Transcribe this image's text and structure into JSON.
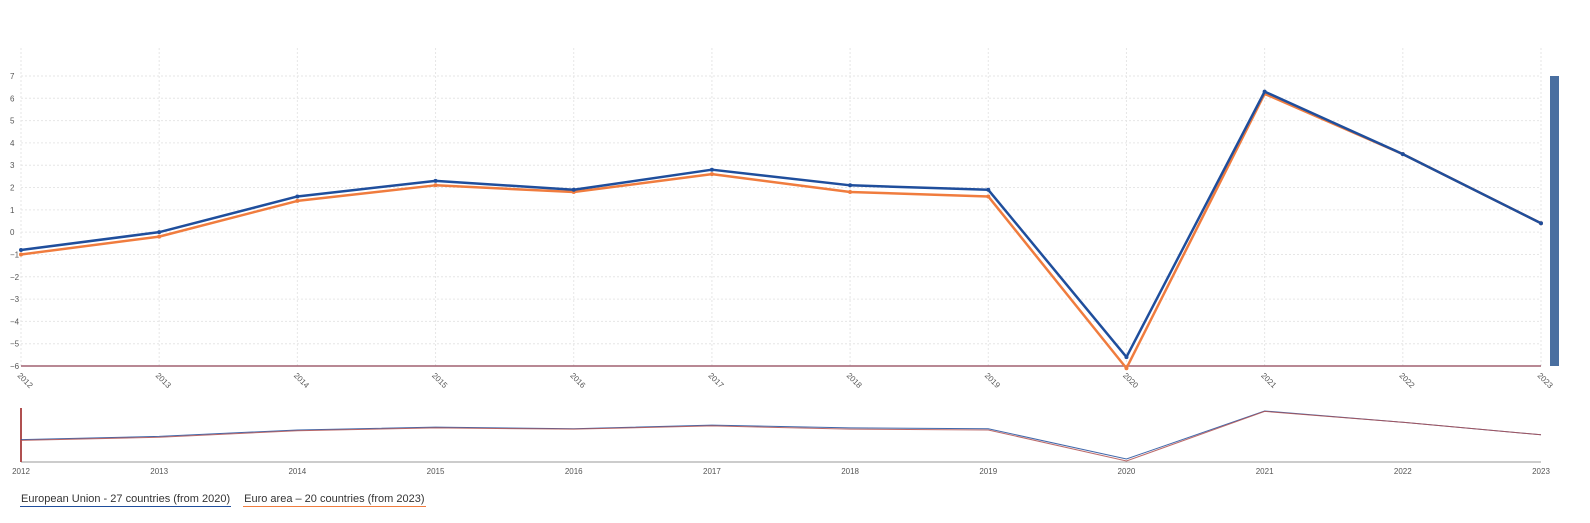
{
  "chart_data": {
    "type": "line",
    "x": [
      2012,
      2013,
      2014,
      2015,
      2016,
      2017,
      2018,
      2019,
      2020,
      2021,
      2022,
      2023
    ],
    "x_tick_labels": [
      "2012",
      "2013",
      "2014",
      "2015",
      "2016",
      "2017",
      "2018",
      "2019",
      "2020",
      "2021",
      "2022",
      "2023"
    ],
    "series": [
      {
        "name": "European Union - 27 countries (from 2020)",
        "color": "#1f4e9c",
        "values": [
          -0.8,
          0.0,
          1.6,
          2.3,
          1.9,
          2.8,
          2.1,
          1.9,
          -5.6,
          6.3,
          3.5,
          0.4
        ]
      },
      {
        "name": "Euro area – 20 countries (from 2023)",
        "color": "#f07c3e",
        "values": [
          -1.0,
          -0.2,
          1.4,
          2.1,
          1.8,
          2.6,
          1.8,
          1.6,
          -6.1,
          6.2,
          3.5,
          0.4
        ]
      }
    ],
    "ylim": [
      -6,
      7
    ],
    "y_ticks": [
      7,
      6,
      5,
      4,
      3,
      2,
      1,
      0,
      -1,
      -2,
      -3,
      -4,
      -5,
      -6
    ],
    "y_tick_labels": [
      "7",
      "6",
      "5",
      "4",
      "3",
      "2",
      "1",
      "0",
      "−1",
      "−2",
      "−3",
      "−4",
      "−5",
      "−6"
    ],
    "grid": true,
    "legend_position": "bottom-left",
    "navigator": true,
    "title": "",
    "xlabel": "",
    "ylabel": ""
  },
  "colors": {
    "navigator_line": "#b05050",
    "scrollbar": "#4a6fa0",
    "baseline": "#a06070"
  }
}
